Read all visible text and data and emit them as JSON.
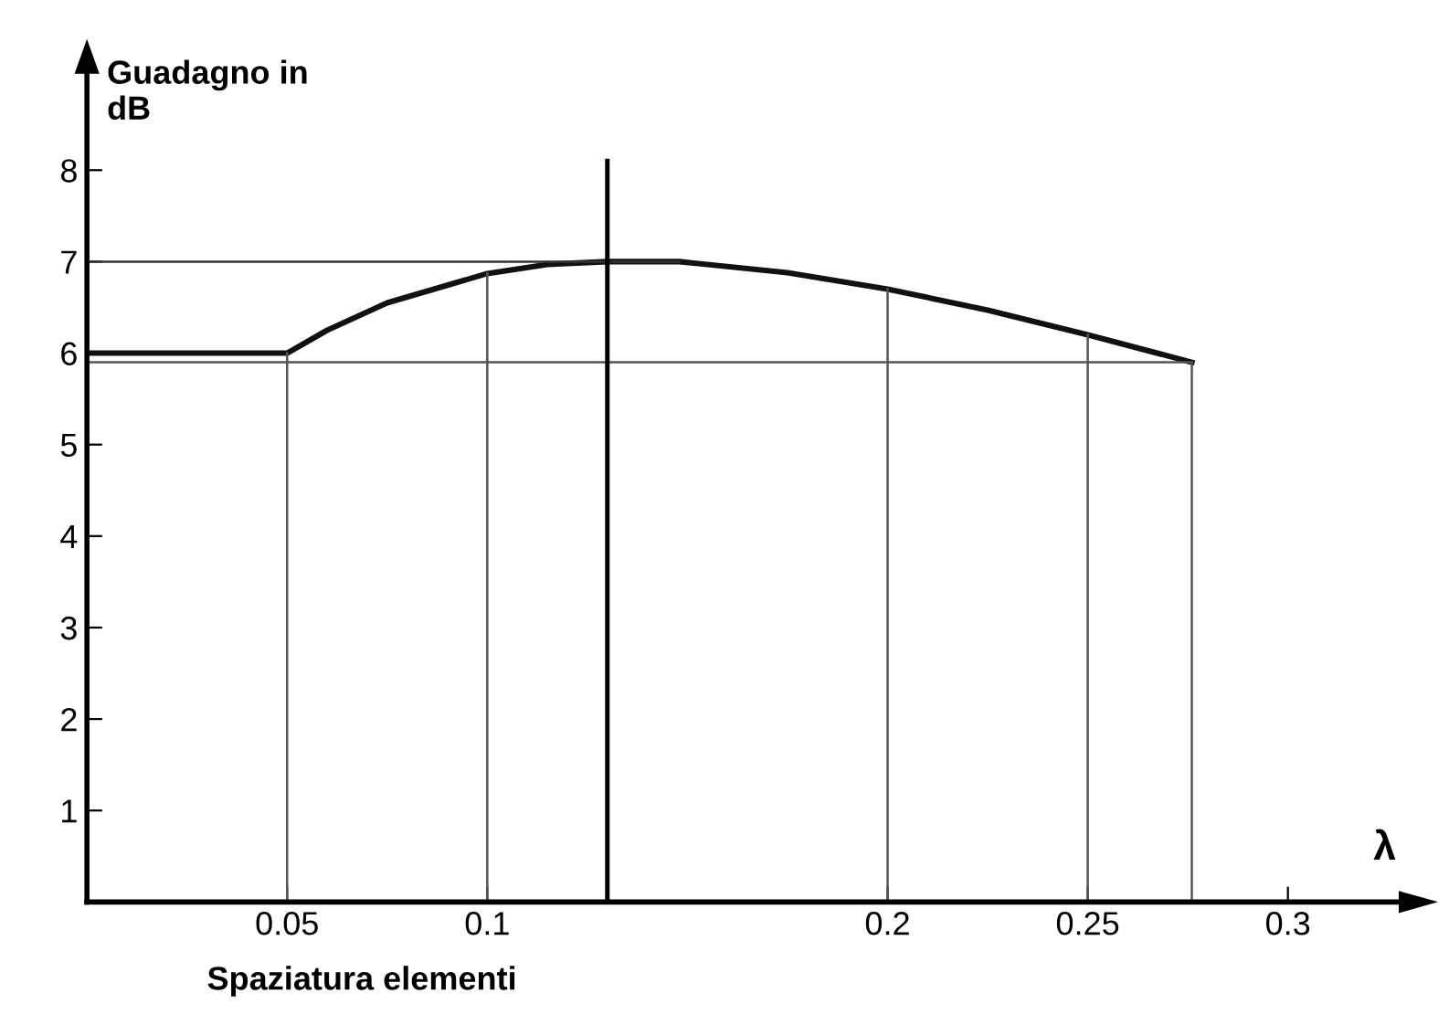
{
  "chart_data": {
    "type": "line",
    "ylabel": "Guadagno in\ndB",
    "xlabel": "Spaziatura elementi",
    "annotations": [
      "λ"
    ],
    "x": [
      0,
      0.05,
      0.06,
      0.075,
      0.1,
      0.115,
      0.13,
      0.148,
      0.175,
      0.2,
      0.225,
      0.25,
      0.276
    ],
    "series": [
      {
        "color": "#111111",
        "values": [
          6.0,
          6.0,
          6.25,
          6.55,
          6.87,
          6.97,
          7.0,
          7.0,
          6.88,
          6.7,
          6.47,
          6.2,
          5.9
        ]
      }
    ],
    "xlim": [
      0,
      0.333
    ],
    "xticks": [
      0.05,
      0.1,
      0.2,
      0.25,
      0.3
    ],
    "ylim": [
      0,
      9.3
    ],
    "yticks": [
      1,
      2,
      3,
      4,
      5,
      6,
      7,
      8
    ],
    "ref_lines": [
      {
        "axis": "y",
        "value": 7,
        "color": "#333333"
      },
      {
        "axis": "y",
        "value": 5.9,
        "color": "#555555"
      },
      {
        "axis": "x",
        "value": 0.05,
        "color": "#555555"
      },
      {
        "axis": "x",
        "value": 0.1,
        "color": "#555555"
      },
      {
        "axis": "x",
        "value": 0.13,
        "color": "#000000",
        "line_style": "solid"
      },
      {
        "axis": "x",
        "value": 0.2,
        "color": "#555555"
      },
      {
        "axis": "x",
        "value": 0.25,
        "color": "#555555"
      },
      {
        "axis": "x",
        "value": 0.276,
        "color": "#555555"
      }
    ],
    "grid": false,
    "legend": false
  }
}
